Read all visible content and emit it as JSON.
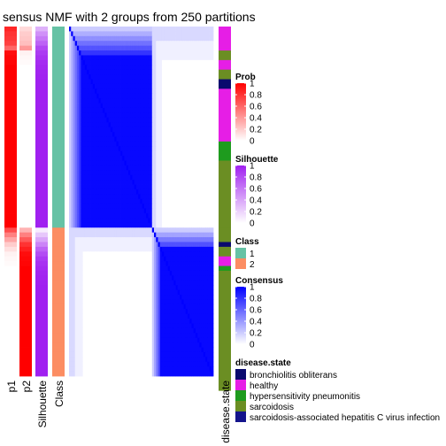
{
  "chart_data": {
    "type": "heatmap",
    "title": "sensus NMF with 2 groups from 250 partitions",
    "annotation_columns": [
      "p1",
      "p2",
      "Silhouette",
      "Class"
    ],
    "bottom_annotation_label": "disease.state",
    "groups": [
      {
        "class": 1,
        "sample_count": 42,
        "p1": [
          0.85,
          0.8,
          0.78,
          0.75,
          0.6,
          0.95,
          0.97,
          0.98,
          1,
          1,
          1,
          1,
          1,
          1,
          1,
          1,
          1,
          1,
          1,
          1,
          1,
          1,
          1,
          1,
          1,
          1,
          1,
          1,
          1,
          1,
          1,
          1,
          1,
          1,
          1,
          1,
          1,
          1,
          1,
          1,
          1,
          1
        ],
        "silhouette": [
          0.35,
          0.5,
          0.6,
          0.7,
          0.82,
          0.88,
          0.92,
          0.95,
          0.97,
          0.98,
          0.99,
          1,
          1,
          1,
          1,
          1,
          1,
          1,
          1,
          1,
          1,
          1,
          1,
          1,
          1,
          1,
          1,
          1,
          1,
          1,
          1,
          1,
          1,
          1,
          1,
          1,
          1,
          1,
          1,
          1,
          1,
          1
        ]
      },
      {
        "class": 2,
        "sample_count": 31,
        "p1": [
          0.7,
          0.5,
          0.35,
          0.2,
          0.12,
          0.05,
          0.03,
          0.02,
          0,
          0,
          0,
          0,
          0,
          0,
          0,
          0,
          0,
          0,
          0,
          0,
          0,
          0,
          0,
          0,
          0,
          0,
          0,
          0,
          0,
          0,
          0
        ],
        "silhouette": [
          0.08,
          0.25,
          0.4,
          0.55,
          0.7,
          0.8,
          0.88,
          0.92,
          0.95,
          0.97,
          0.98,
          0.99,
          1,
          1,
          1,
          1,
          1,
          1,
          1,
          1,
          1,
          1,
          1,
          1,
          1,
          1,
          1,
          1,
          1,
          1,
          1
        ]
      }
    ],
    "disease_state_runs": [
      {
        "state": "healthy",
        "count": 5
      },
      {
        "state": "sarcoidosis",
        "count": 2
      },
      {
        "state": "healthy",
        "count": 2
      },
      {
        "state": "sarcoidosis",
        "count": 2
      },
      {
        "state": "bronchiolitis obliterans",
        "count": 2
      },
      {
        "state": "healthy",
        "count": 11
      },
      {
        "state": "hypersensitivity pneumonitis",
        "count": 4
      },
      {
        "state": "sarcoidosis",
        "count": 14
      },
      {
        "state": "sarcoidosis",
        "count": 3
      },
      {
        "state": "bronchiolitis obliterans",
        "count": 1
      },
      {
        "state": "sarcoidosis",
        "count": 2
      },
      {
        "state": "healthy",
        "count": 2
      },
      {
        "state": "hypersensitivity pneumonitis",
        "count": 1
      },
      {
        "state": "sarcoidosis",
        "count": 25
      }
    ],
    "consensus_scale": [
      0,
      1
    ],
    "legends": [
      {
        "title": "Prob",
        "type": "continuous",
        "ticks": [
          "1",
          "0.8",
          "0.6",
          "0.4",
          "0.2",
          "0"
        ],
        "color_high": "#FF0000",
        "color_low": "#FFFFFF"
      },
      {
        "title": "Silhouette",
        "type": "continuous",
        "ticks": [
          "1",
          "0.8",
          "0.6",
          "0.4",
          "0.2",
          "0"
        ],
        "color_high": "#A020F0",
        "color_low": "#FFFFFF"
      },
      {
        "title": "Class",
        "type": "discrete",
        "items": [
          {
            "label": "1",
            "color": "#66C2A5"
          },
          {
            "label": "2",
            "color": "#FC8D62"
          }
        ]
      },
      {
        "title": "Consensus",
        "type": "continuous",
        "ticks": [
          "1",
          "0.8",
          "0.6",
          "0.4",
          "0.2",
          "0"
        ],
        "color_high": "#0000FF",
        "color_low": "#FFFFFF"
      },
      {
        "title": "disease.state",
        "type": "discrete",
        "items": [
          {
            "label": "bronchiolitis obliterans",
            "color": "#0A0A6E"
          },
          {
            "label": "healthy",
            "color": "#E61EE6"
          },
          {
            "label": "hypersensitivity pneumonitis",
            "color": "#1E9B1E"
          },
          {
            "label": "sarcoidosis",
            "color": "#6B8E23"
          },
          {
            "label": "sarcoidosis-associated hepatitis C virus infection",
            "color": "#14148C"
          }
        ]
      }
    ]
  }
}
